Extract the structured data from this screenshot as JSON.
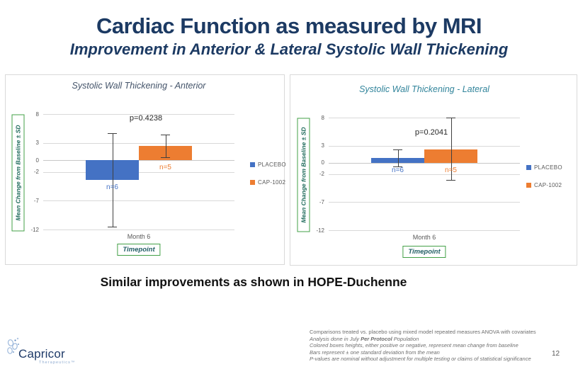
{
  "slide": {
    "title": "Cardiac Function as measured by MRI",
    "subtitle": "Improvement in Anterior & Lateral Systolic Wall Thickening",
    "statement": "Similar improvements as shown in HOPE-Duchenne",
    "page_number": "12",
    "accent_navy": "#1C3A63"
  },
  "logo": {
    "name": "Capricor",
    "sub": "Therapeutics™"
  },
  "footnotes": {
    "lines": [
      {
        "italic": false,
        "segments": [
          {
            "t": "Comparisons treated vs. placebo using mixed model repeated measures ANOVA with covariates"
          }
        ]
      },
      {
        "italic": true,
        "segments": [
          {
            "t": "Analysis done in July "
          },
          {
            "t": "Per Protocol",
            "b": true
          },
          {
            "t": " Population"
          }
        ]
      },
      {
        "italic": true,
        "segments": [
          {
            "t": "Colored boxes heights, either positive or negative, represent mean change from baseline"
          }
        ]
      },
      {
        "italic": true,
        "segments": [
          {
            "t": "Bars represent ± one standard deviation from the mean"
          }
        ]
      },
      {
        "italic": true,
        "segments": [
          {
            "t": "P-values are nominal without adjustment for multiple testing or claims of statistical significance"
          }
        ]
      }
    ]
  },
  "chart_data": [
    {
      "type": "bar",
      "title": "Systolic Wall Thickening - Anterior",
      "title_color": "#44546A",
      "ylabel": "Mean Change from Baseline ± SD",
      "xlabel": "Timepoint",
      "categories": [
        "Month 6"
      ],
      "ylim": [
        -12,
        8
      ],
      "yticks": [
        8,
        3,
        0,
        -2,
        -7,
        -12
      ],
      "gridlines": [
        8,
        3,
        0,
        -2,
        -7,
        -12
      ],
      "grid": true,
      "legend_position": "right",
      "p_annotation": {
        "label": "p=0.4238",
        "y": 8.0
      },
      "series": [
        {
          "name": "PLACEBO",
          "color": "#4472C4",
          "values": [
            -3.4
          ],
          "error_low": [
            -11.5
          ],
          "error_high": [
            4.7
          ],
          "n_label": "n=6"
        },
        {
          "name": "CAP-1002",
          "color": "#ED7D31",
          "values": [
            2.5
          ],
          "error_low": [
            0.5
          ],
          "error_high": [
            4.4
          ],
          "n_label": "n=5"
        }
      ]
    },
    {
      "type": "bar",
      "title": "Systolic Wall Thickening - Lateral",
      "title_color": "#31849B",
      "ylabel": "Mean Change from Baseline ± SD",
      "xlabel": "Timepoint",
      "categories": [
        "Month 6"
      ],
      "ylim": [
        -12,
        8
      ],
      "yticks": [
        8,
        3,
        0,
        -2,
        -7,
        -12
      ],
      "gridlines": [
        8,
        3,
        0,
        -2,
        -7,
        -12
      ],
      "grid": true,
      "legend_position": "right",
      "p_annotation": {
        "label": "p=0.2041",
        "y": 6.1
      },
      "series": [
        {
          "name": "PLACEBO",
          "color": "#4472C4",
          "values": [
            0.8
          ],
          "error_low": [
            -0.7
          ],
          "error_high": [
            2.3
          ],
          "n_label": "n=6"
        },
        {
          "name": "CAP-1002",
          "color": "#ED7D31",
          "values": [
            2.4
          ],
          "error_low": [
            -3.1
          ],
          "error_high": [
            8.0
          ],
          "n_label": "n=5"
        }
      ]
    }
  ]
}
